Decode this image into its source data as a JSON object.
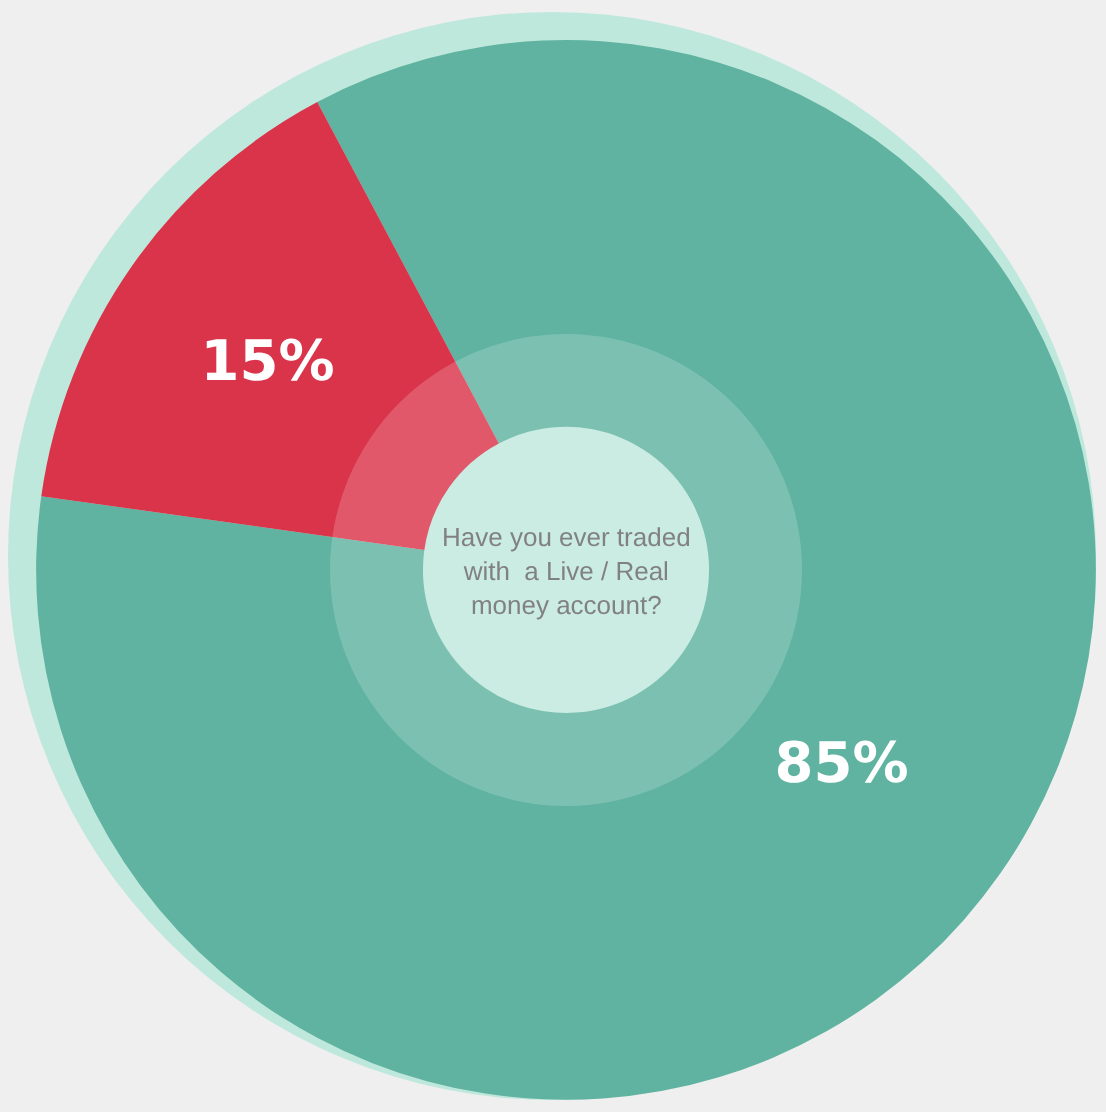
{
  "chart_data": {
    "type": "donut",
    "categories": [
      null,
      null
    ],
    "values": [
      85,
      15
    ],
    "colors": [
      "#5fb3a0",
      "#d9344a"
    ],
    "value_labels": [
      "85%",
      "15%"
    ],
    "annotations": [
      "Have you ever traded with  a Live / Real money account?"
    ],
    "legend": false
  }
}
